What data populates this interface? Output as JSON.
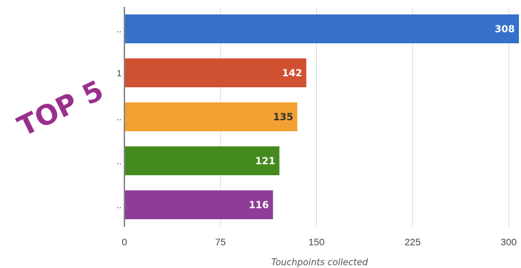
{
  "overlay_text": "TOP 5",
  "chart_data": {
    "type": "bar",
    "orientation": "horizontal",
    "categories": [
      "..",
      "1",
      "..",
      "..",
      ".."
    ],
    "values": [
      308,
      142,
      135,
      121,
      116
    ],
    "colors": [
      "#3571cb",
      "#d05032",
      "#f2a032",
      "#458a1d",
      "#8e3d97"
    ],
    "value_label_colors": [
      "#ffffff",
      "#ffffff",
      "#333333",
      "#ffffff",
      "#ffffff"
    ],
    "xlabel": "Touchpoints collected",
    "xlim": [
      0,
      308
    ],
    "xticks": [
      0,
      75,
      150,
      225,
      300
    ],
    "grid": true
  }
}
